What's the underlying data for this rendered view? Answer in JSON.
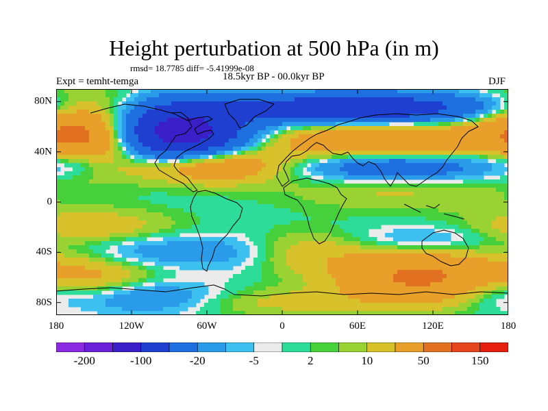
{
  "plot": {
    "title": "Height perturbation at 500 hPa (in m)",
    "stats": "rmsd= 18.7785 diff= -5.41999e-08",
    "experiment": "Expt = temht-temga",
    "period": "18.5kyr BP - 00.0kyr BP",
    "season": "DJF"
  },
  "axes": {
    "lat_ticks": [
      {
        "label": "80N",
        "value": 80
      },
      {
        "label": "40N",
        "value": 40
      },
      {
        "label": "0",
        "value": 0
      },
      {
        "label": "40S",
        "value": -40
      },
      {
        "label": "80S",
        "value": -80
      }
    ],
    "lon_ticks": [
      {
        "label": "180",
        "value": -180
      },
      {
        "label": "120W",
        "value": -120
      },
      {
        "label": "60W",
        "value": -60
      },
      {
        "label": "0",
        "value": 0
      },
      {
        "label": "60E",
        "value": 60
      },
      {
        "label": "120E",
        "value": 120
      },
      {
        "label": "180",
        "value": 180
      }
    ],
    "lat_range": [
      -90,
      90
    ],
    "lon_range": [
      -180,
      180
    ]
  },
  "colorbar": {
    "colors": [
      "#8A2BE2",
      "#6A1FD8",
      "#3A1FC8",
      "#1E3FD0",
      "#1E6FE0",
      "#2A9BE8",
      "#3CC0F0",
      "#EBEBEB",
      "#2EDC9A",
      "#46D13C",
      "#9AD233",
      "#D8C22C",
      "#E8A02A",
      "#E27222",
      "#E5461E",
      "#E51E10"
    ],
    "labels": [
      {
        "text": "-200",
        "boundary": 1
      },
      {
        "text": "-100",
        "boundary": 3
      },
      {
        "text": "-20",
        "boundary": 5
      },
      {
        "text": "-5",
        "boundary": 7
      },
      {
        "text": "2",
        "boundary": 9
      },
      {
        "text": "10",
        "boundary": 11
      },
      {
        "text": "50",
        "boundary": 13
      },
      {
        "text": "150",
        "boundary": 15
      }
    ]
  },
  "field": {
    "background_color": "#EBEBEB",
    "coastline_color": "#000000",
    "anomalies": [
      {
        "lon": -150,
        "lat": 55,
        "amp": 70,
        "slon": 35,
        "slat": 18
      },
      {
        "lon": -85,
        "lat": 55,
        "amp": -140,
        "slon": 38,
        "slat": 16
      },
      {
        "lon": -60,
        "lat": 30,
        "amp": 55,
        "slon": 40,
        "slat": 10
      },
      {
        "lon": 60,
        "lat": 75,
        "amp": -90,
        "slon": 70,
        "slat": 8
      },
      {
        "lon": 90,
        "lat": 48,
        "amp": 50,
        "slon": 70,
        "slat": 10
      },
      {
        "lon": 90,
        "lat": 28,
        "amp": -45,
        "slon": 50,
        "slat": 8
      },
      {
        "lon": 165,
        "lat": 40,
        "amp": -15,
        "slon": 25,
        "slat": 12
      },
      {
        "lon": -160,
        "lat": 32,
        "amp": -15,
        "slon": 20,
        "slat": 8
      },
      {
        "lon": 90,
        "lat": 10,
        "amp": 12,
        "slon": 60,
        "slat": 12
      },
      {
        "lon": -150,
        "lat": -20,
        "amp": 18,
        "slon": 45,
        "slat": 10
      },
      {
        "lon": -150,
        "lat": -60,
        "amp": 25,
        "slon": 40,
        "slat": 12
      },
      {
        "lon": -100,
        "lat": -40,
        "amp": -18,
        "slon": 40,
        "slat": 10
      },
      {
        "lon": -110,
        "lat": -75,
        "amp": -25,
        "slon": 40,
        "slat": 10
      },
      {
        "lon": 25,
        "lat": -40,
        "amp": 14,
        "slon": 40,
        "slat": 12
      },
      {
        "lon": 110,
        "lat": -60,
        "amp": 55,
        "slon": 45,
        "slat": 14
      },
      {
        "lon": 110,
        "lat": -30,
        "amp": -15,
        "slon": 40,
        "slat": 8
      },
      {
        "lon": 170,
        "lat": -70,
        "amp": -18,
        "slon": 25,
        "slat": 10
      },
      {
        "lon": -40,
        "lat": -40,
        "amp": -10,
        "slon": 25,
        "slat": 10
      },
      {
        "lon": 0,
        "lat": -80,
        "amp": 12,
        "slon": 60,
        "slat": 8
      }
    ]
  }
}
